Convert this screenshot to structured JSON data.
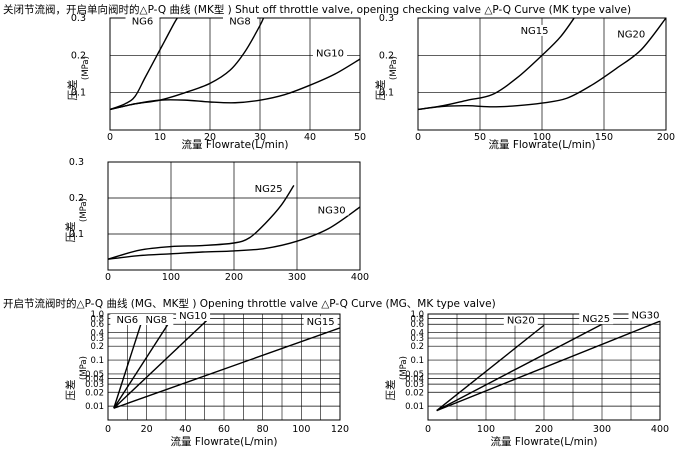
{
  "headings": {
    "top": "关闭节流阀，开启单向阀时的△P-Q 曲线 (MK型 ) Shut off throttle valve, opening checking valve △P-Q Curve (MK type valve)",
    "bottom": "开启节流阀时的△P-Q 曲线 (MG、MK型 ) Opening throttle valve △P-Q Curve (MG、MK type valve)"
  },
  "chart_data": [
    {
      "id": "c1",
      "type": "line",
      "xlabel": "流量 Flowrate(L/min)",
      "ylabel": "压差",
      "yunit": "(MPa)",
      "xlim": [
        0,
        50
      ],
      "ylim": [
        0,
        0.3
      ],
      "xticks": [
        0,
        10,
        20,
        30,
        40,
        50
      ],
      "yticks": [
        0.1,
        0.2,
        0.3
      ],
      "grid": true,
      "series": [
        {
          "name": "NG6",
          "points": [
            [
              0,
              0.055
            ],
            [
              3,
              0.07
            ],
            [
              5,
              0.09
            ],
            [
              7,
              0.14
            ],
            [
              9,
              0.19
            ],
            [
              11,
              0.24
            ],
            [
              13,
              0.29
            ],
            [
              14,
              0.31
            ]
          ],
          "label_at": [
            6.5,
            0.285
          ]
        },
        {
          "name": "NG8",
          "points": [
            [
              0,
              0.055
            ],
            [
              5,
              0.07
            ],
            [
              10,
              0.08
            ],
            [
              15,
              0.1
            ],
            [
              20,
              0.125
            ],
            [
              24,
              0.16
            ],
            [
              27,
              0.21
            ],
            [
              30,
              0.28
            ],
            [
              31,
              0.31
            ]
          ],
          "label_at": [
            26,
            0.285
          ]
        },
        {
          "name": "NG10",
          "points": [
            [
              0,
              0.055
            ],
            [
              5,
              0.07
            ],
            [
              10,
              0.08
            ],
            [
              15,
              0.08
            ],
            [
              20,
              0.075
            ],
            [
              25,
              0.073
            ],
            [
              30,
              0.08
            ],
            [
              35,
              0.095
            ],
            [
              40,
              0.12
            ],
            [
              45,
              0.15
            ],
            [
              50,
              0.19
            ]
          ],
          "label_at": [
            44,
            0.2
          ]
        }
      ]
    },
    {
      "id": "c2",
      "type": "line",
      "xlabel": "流量 Flowrate(L/min)",
      "ylabel": "压差",
      "yunit": "(MPa)",
      "xlim": [
        0,
        200
      ],
      "ylim": [
        0,
        0.3
      ],
      "xticks": [
        0,
        50,
        100,
        150,
        200
      ],
      "yticks": [
        0.1,
        0.2,
        0.3
      ],
      "grid": true,
      "series": [
        {
          "name": "NG15",
          "points": [
            [
              0,
              0.055
            ],
            [
              20,
              0.065
            ],
            [
              40,
              0.08
            ],
            [
              60,
              0.095
            ],
            [
              80,
              0.14
            ],
            [
              100,
              0.2
            ],
            [
              115,
              0.25
            ],
            [
              128,
              0.31
            ]
          ],
          "label_at": [
            94,
            0.26
          ]
        },
        {
          "name": "NG20",
          "points": [
            [
              0,
              0.055
            ],
            [
              20,
              0.063
            ],
            [
              40,
              0.065
            ],
            [
              60,
              0.062
            ],
            [
              80,
              0.065
            ],
            [
              100,
              0.072
            ],
            [
              120,
              0.085
            ],
            [
              140,
              0.12
            ],
            [
              160,
              0.165
            ],
            [
              180,
              0.215
            ],
            [
              200,
              0.3
            ]
          ],
          "label_at": [
            172,
            0.25
          ]
        }
      ]
    },
    {
      "id": "c3",
      "type": "line",
      "xlabel": "",
      "ylabel": "压差",
      "yunit": "(MPa)",
      "xlim": [
        0,
        400
      ],
      "ylim": [
        0,
        0.3
      ],
      "xticks": [
        0,
        100,
        200,
        300,
        400
      ],
      "yticks": [
        0.1,
        0.2,
        0.3
      ],
      "grid": true,
      "series": [
        {
          "name": "NG25",
          "points": [
            [
              0,
              0.03
            ],
            [
              50,
              0.055
            ],
            [
              100,
              0.065
            ],
            [
              150,
              0.068
            ],
            [
              200,
              0.075
            ],
            [
              225,
              0.09
            ],
            [
              250,
              0.13
            ],
            [
              275,
              0.18
            ],
            [
              295,
              0.235
            ]
          ],
          "label_at": [
            255,
            0.22
          ]
        },
        {
          "name": "NG30",
          "points": [
            [
              0,
              0.03
            ],
            [
              50,
              0.04
            ],
            [
              100,
              0.045
            ],
            [
              150,
              0.05
            ],
            [
              200,
              0.053
            ],
            [
              250,
              0.06
            ],
            [
              300,
              0.08
            ],
            [
              350,
              0.115
            ],
            [
              400,
              0.175
            ]
          ],
          "label_at": [
            355,
            0.16
          ]
        }
      ]
    },
    {
      "id": "c4",
      "type": "line",
      "xlabel": "流量 Flowrate(L/min)",
      "ylabel": "压差",
      "yunit": "(MPa)",
      "yscale": "log",
      "xlim": [
        0,
        120
      ],
      "ylim": [
        0.005,
        1.0
      ],
      "xticks": [
        0,
        20,
        40,
        60,
        80,
        100,
        120
      ],
      "yticks": [
        0.01,
        0.02,
        0.03,
        0.04,
        0.05,
        0.1,
        0.2,
        0.3,
        0.4,
        0.6,
        0.8,
        1.0
      ],
      "ytick_labels": [
        "0.01",
        "0.02",
        "0.03",
        "0.04",
        "0.05",
        "0.1",
        "0.2",
        "0.3",
        "0.4",
        "0.6",
        "0.8",
        "1.0"
      ],
      "grid": true,
      "series": [
        {
          "name": "NG6",
          "points": [
            [
              3,
              0.009
            ],
            [
              17,
              0.6
            ]
          ],
          "label_at": [
            10,
            0.67
          ]
        },
        {
          "name": "NG8",
          "points": [
            [
              3,
              0.009
            ],
            [
              31,
              0.6
            ]
          ],
          "label_at": [
            25,
            0.67
          ]
        },
        {
          "name": "NG10",
          "points": [
            [
              3,
              0.009
            ],
            [
              51,
              0.72
            ]
          ],
          "label_at": [
            44,
            0.82
          ]
        },
        {
          "name": "NG15",
          "points": [
            [
              3,
              0.009
            ],
            [
              120,
              0.5
            ]
          ],
          "label_at": [
            110,
            0.6
          ]
        }
      ]
    },
    {
      "id": "c5",
      "type": "line",
      "xlabel": "流量 Flowrate(L/min)",
      "ylabel": "压差",
      "yunit": "(MPa)",
      "yscale": "log",
      "xlim": [
        0,
        400
      ],
      "ylim": [
        0.005,
        1.0
      ],
      "xticks": [
        0,
        100,
        200,
        300,
        400
      ],
      "yticks": [
        0.01,
        0.02,
        0.03,
        0.04,
        0.05,
        0.1,
        0.2,
        0.3,
        0.4,
        0.6,
        0.8,
        1.0
      ],
      "ytick_labels": [
        "0.01",
        "0.02",
        "0.03",
        "0.04",
        "0.05",
        "0.1",
        "0.2",
        "0.3",
        "0.4",
        "0.6",
        "0.8",
        "1.0"
      ],
      "grid": true,
      "series": [
        {
          "name": "NG20",
          "points": [
            [
              15,
              0.008
            ],
            [
              200,
              0.57
            ]
          ],
          "label_at": [
            160,
            0.65
          ]
        },
        {
          "name": "NG25",
          "points": [
            [
              15,
              0.008
            ],
            [
              300,
              0.6
            ]
          ],
          "label_at": [
            290,
            0.7
          ]
        },
        {
          "name": "NG30",
          "points": [
            [
              15,
              0.008
            ],
            [
              400,
              0.7
            ]
          ],
          "label_at": [
            375,
            0.83
          ]
        }
      ]
    }
  ]
}
